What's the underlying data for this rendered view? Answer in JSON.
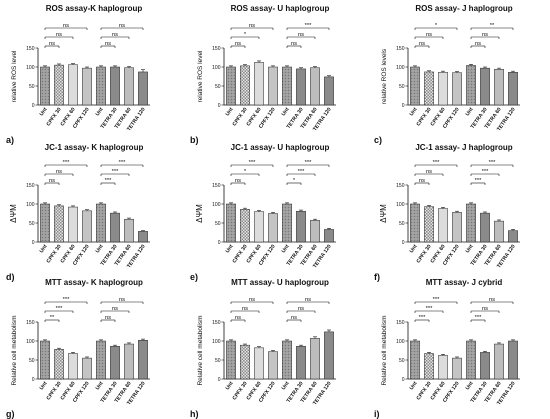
{
  "colors": {
    "unt": "#9a9a9a",
    "light": "#dcdcdc",
    "mid": "#c4c4c4",
    "dark": "#a4a4a4",
    "tetra_light": "#d8d8d8",
    "tetra_mid": "#bdbdbd",
    "tetra_dark": "#8a8a8a"
  },
  "chart_data": [
    {
      "type": "bar",
      "panel": "a)",
      "title": "ROS assay-K haplogroup",
      "ylabel": "relative ROS level",
      "ylim": [
        0,
        150
      ],
      "yticks": [
        0,
        50,
        100,
        150
      ],
      "categories": [
        "Unt",
        "CPFX 30",
        "CPFX 60",
        "CPFX 120",
        "Unt",
        "TETRA 30",
        "TETRA 60",
        "TETRA 120"
      ],
      "values": [
        100,
        105,
        106,
        97,
        100,
        100,
        98,
        87
      ],
      "errors": [
        3,
        3,
        3,
        3,
        3,
        3,
        3,
        6
      ],
      "significance": [
        {
          "from": 0,
          "to": 1,
          "level": 1,
          "label": "ns"
        },
        {
          "from": 0,
          "to": 2,
          "level": 2,
          "label": "ns"
        },
        {
          "from": 0,
          "to": 3,
          "level": 3,
          "label": "ns"
        },
        {
          "from": 4,
          "to": 5,
          "level": 1,
          "label": "ns"
        },
        {
          "from": 4,
          "to": 6,
          "level": 2,
          "label": "ns"
        },
        {
          "from": 4,
          "to": 7,
          "level": 3,
          "label": "ns"
        }
      ]
    },
    {
      "type": "bar",
      "panel": "b)",
      "title": "ROS assay- U haplogroup",
      "ylabel": "relative ROS level",
      "ylim": [
        0,
        150
      ],
      "yticks": [
        0,
        50,
        100,
        150
      ],
      "categories": [
        "Unt",
        "CPFX 30",
        "CPFX 60",
        "CPFX 120",
        "Unt",
        "TETRA 30",
        "TETRA 60",
        "TETRA 120"
      ],
      "values": [
        100,
        103,
        112,
        100,
        100,
        95,
        98,
        74
      ],
      "errors": [
        3,
        3,
        4,
        3,
        3,
        3,
        3,
        3
      ],
      "significance": [
        {
          "from": 0,
          "to": 1,
          "level": 1,
          "label": "ns"
        },
        {
          "from": 0,
          "to": 2,
          "level": 2,
          "label": "*"
        },
        {
          "from": 0,
          "to": 3,
          "level": 3,
          "label": "ns"
        },
        {
          "from": 4,
          "to": 5,
          "level": 1,
          "label": "ns"
        },
        {
          "from": 4,
          "to": 6,
          "level": 2,
          "label": "ns"
        },
        {
          "from": 4,
          "to": 7,
          "level": 3,
          "label": "***"
        }
      ]
    },
    {
      "type": "bar",
      "panel": "c)",
      "title": "ROS assay- J haplogroup",
      "ylabel": "relative ROS levels",
      "ylim": [
        0,
        150
      ],
      "yticks": [
        0,
        50,
        100,
        150
      ],
      "categories": [
        "Unt",
        "CPFX 30",
        "CPFX 60",
        "CPFX 120",
        "Unt",
        "TETRA 30",
        "TETRA 60",
        "TETRA 120"
      ],
      "values": [
        100,
        87,
        86,
        85,
        104,
        97,
        94,
        86
      ],
      "errors": [
        3,
        3,
        3,
        3,
        3,
        3,
        3,
        3
      ],
      "significance": [
        {
          "from": 0,
          "to": 1,
          "level": 1,
          "label": "ns"
        },
        {
          "from": 0,
          "to": 2,
          "level": 2,
          "label": "ns"
        },
        {
          "from": 0,
          "to": 3,
          "level": 3,
          "label": "*"
        },
        {
          "from": 4,
          "to": 5,
          "level": 1,
          "label": "ns"
        },
        {
          "from": 4,
          "to": 6,
          "level": 2,
          "label": "ns"
        },
        {
          "from": 4,
          "to": 7,
          "level": 3,
          "label": "**"
        }
      ]
    },
    {
      "type": "bar",
      "panel": "d)",
      "title": "JC-1 assay- K haplogroup",
      "ylabel": "ΔΨM",
      "ylim": [
        0,
        150
      ],
      "yticks": [
        0,
        50,
        100,
        150
      ],
      "categories": [
        "Unt",
        "CPFX 30",
        "CPFX 60",
        "CPFX 120",
        "Unt",
        "TETRA 30",
        "TETRA 60",
        "TETRA 120"
      ],
      "values": [
        100,
        95,
        92,
        82,
        100,
        76,
        60,
        28
      ],
      "errors": [
        3,
        3,
        3,
        3,
        3,
        3,
        3,
        2
      ],
      "significance": [
        {
          "from": 0,
          "to": 1,
          "level": 1,
          "label": "ns"
        },
        {
          "from": 0,
          "to": 2,
          "level": 2,
          "label": "ns"
        },
        {
          "from": 0,
          "to": 3,
          "level": 3,
          "label": "***"
        },
        {
          "from": 4,
          "to": 5,
          "level": 1,
          "label": "***"
        },
        {
          "from": 4,
          "to": 6,
          "level": 2,
          "label": "***"
        },
        {
          "from": 4,
          "to": 7,
          "level": 3,
          "label": "***"
        }
      ]
    },
    {
      "type": "bar",
      "panel": "e)",
      "title": "JC-1 assay- U haplogroup",
      "ylabel": "ΔΨM",
      "ylim": [
        0,
        150
      ],
      "yticks": [
        0,
        50,
        100,
        150
      ],
      "categories": [
        "Unt",
        "CPFX 30",
        "CPFX 60",
        "CPFX 120",
        "Unt",
        "TETRA 30",
        "TETRA 60",
        "TETRA 120"
      ],
      "values": [
        100,
        86,
        80,
        75,
        100,
        81,
        57,
        33
      ],
      "errors": [
        3,
        3,
        3,
        3,
        3,
        3,
        3,
        3
      ],
      "significance": [
        {
          "from": 0,
          "to": 1,
          "level": 1,
          "label": "ns"
        },
        {
          "from": 0,
          "to": 2,
          "level": 2,
          "label": "*"
        },
        {
          "from": 0,
          "to": 3,
          "level": 3,
          "label": "***"
        },
        {
          "from": 4,
          "to": 5,
          "level": 1,
          "label": "*"
        },
        {
          "from": 4,
          "to": 6,
          "level": 2,
          "label": "***"
        },
        {
          "from": 4,
          "to": 7,
          "level": 3,
          "label": "***"
        }
      ]
    },
    {
      "type": "bar",
      "panel": "f)",
      "title": "JC-1 assay- J haplogroup",
      "ylabel": "ΔΨM",
      "ylim": [
        0,
        150
      ],
      "yticks": [
        0,
        50,
        100,
        150
      ],
      "categories": [
        "Unt",
        "CPFX 30",
        "CPFX 60",
        "CPFX 120",
        "Unt",
        "TETRA 30",
        "TETRA 60",
        "TETRA 120"
      ],
      "values": [
        100,
        93,
        88,
        78,
        100,
        76,
        55,
        30
      ],
      "errors": [
        3,
        3,
        3,
        3,
        3,
        3,
        3,
        3
      ],
      "significance": [
        {
          "from": 0,
          "to": 1,
          "level": 1,
          "label": "ns"
        },
        {
          "from": 0,
          "to": 2,
          "level": 2,
          "label": "ns"
        },
        {
          "from": 0,
          "to": 3,
          "level": 3,
          "label": "***"
        },
        {
          "from": 4,
          "to": 5,
          "level": 1,
          "label": "***"
        },
        {
          "from": 4,
          "to": 6,
          "level": 2,
          "label": "***"
        },
        {
          "from": 4,
          "to": 7,
          "level": 3,
          "label": "***"
        }
      ]
    },
    {
      "type": "bar",
      "panel": "g)",
      "title": "MTT assay- K haplogroup",
      "ylabel": "Relative cell metabolism",
      "ylim": [
        0,
        150
      ],
      "yticks": [
        0,
        50,
        100,
        150
      ],
      "categories": [
        "Unt",
        "CPFX 30",
        "CPFX 60",
        "CPFX 120",
        "Unt",
        "TETRA 30",
        "TETRA 60",
        "TETRA 120"
      ],
      "values": [
        100,
        78,
        67,
        55,
        100,
        86,
        92,
        102
      ],
      "errors": [
        3,
        3,
        3,
        3,
        3,
        3,
        3,
        3
      ],
      "significance": [
        {
          "from": 0,
          "to": 1,
          "level": 1,
          "label": "**"
        },
        {
          "from": 0,
          "to": 2,
          "level": 2,
          "label": "***"
        },
        {
          "from": 0,
          "to": 3,
          "level": 3,
          "label": "***"
        },
        {
          "from": 4,
          "to": 5,
          "level": 1,
          "label": "ns"
        },
        {
          "from": 4,
          "to": 6,
          "level": 2,
          "label": "ns"
        },
        {
          "from": 4,
          "to": 7,
          "level": 3,
          "label": "ns"
        }
      ]
    },
    {
      "type": "bar",
      "panel": "h)",
      "title": "MTT assay- U haplogroup",
      "ylabel": "Relative cell metabolism",
      "ylim": [
        0,
        150
      ],
      "yticks": [
        0,
        50,
        100,
        150
      ],
      "categories": [
        "Unt",
        "CPFX 30",
        "CPFX 60",
        "CPFX 120",
        "Unt",
        "TETRA 30",
        "TETRA 60",
        "TETRA 120"
      ],
      "values": [
        100,
        89,
        82,
        72,
        100,
        86,
        107,
        124
      ],
      "errors": [
        3,
        3,
        3,
        3,
        3,
        3,
        4,
        5
      ],
      "significance": [
        {
          "from": 0,
          "to": 1,
          "level": 1,
          "label": "ns"
        },
        {
          "from": 0,
          "to": 2,
          "level": 2,
          "label": "ns"
        },
        {
          "from": 0,
          "to": 3,
          "level": 3,
          "label": "ns"
        },
        {
          "from": 4,
          "to": 5,
          "level": 1,
          "label": "ns"
        },
        {
          "from": 4,
          "to": 6,
          "level": 2,
          "label": "ns"
        },
        {
          "from": 4,
          "to": 7,
          "level": 3,
          "label": "ns"
        }
      ]
    },
    {
      "type": "bar",
      "panel": "i)",
      "title": "MTT assay- J cybrid",
      "ylabel": "Relative cell metabolism",
      "ylim": [
        0,
        150
      ],
      "yticks": [
        0,
        50,
        100,
        150
      ],
      "categories": [
        "Unt",
        "CPFX 30",
        "CPFX 60",
        "CPFX 120",
        "Unt",
        "TETRA 30",
        "TETRA 60",
        "TETRA 120"
      ],
      "values": [
        100,
        67,
        62,
        55,
        100,
        70,
        92,
        100
      ],
      "errors": [
        3,
        3,
        3,
        3,
        3,
        3,
        3,
        3
      ],
      "significance": [
        {
          "from": 0,
          "to": 1,
          "level": 1,
          "label": "***"
        },
        {
          "from": 0,
          "to": 2,
          "level": 2,
          "label": "***"
        },
        {
          "from": 0,
          "to": 3,
          "level": 3,
          "label": "***"
        },
        {
          "from": 4,
          "to": 5,
          "level": 1,
          "label": "***"
        },
        {
          "from": 4,
          "to": 6,
          "level": 2,
          "label": "ns"
        },
        {
          "from": 4,
          "to": 7,
          "level": 3,
          "label": "ns"
        }
      ]
    }
  ]
}
